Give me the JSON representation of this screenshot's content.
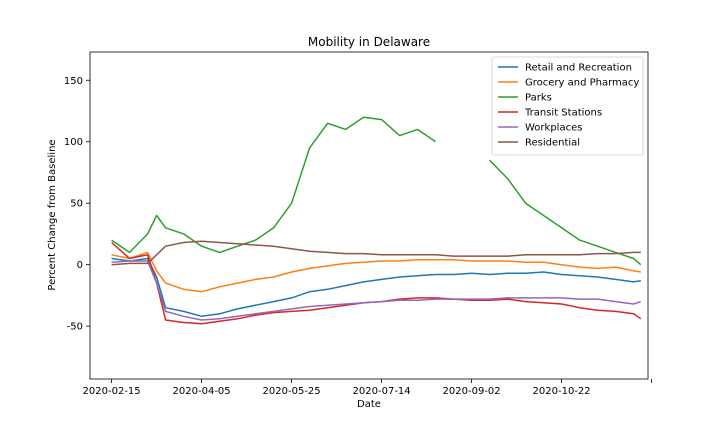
{
  "chart_data": {
    "type": "line",
    "title": "Mobility in Delaware",
    "xlabel": "Date",
    "ylabel": "Percent Change from Baseline",
    "xlim": [
      -12,
      298
    ],
    "ylim": [
      -93,
      173
    ],
    "x_ticks": [
      {
        "day": 0,
        "label": "2020-02-15"
      },
      {
        "day": 50,
        "label": "2020-04-05"
      },
      {
        "day": 100,
        "label": "2020-05-25"
      },
      {
        "day": 150,
        "label": "2020-07-14"
      },
      {
        "day": 200,
        "label": "2020-09-02"
      },
      {
        "day": 250,
        "label": "2020-10-22"
      },
      {
        "day": 300,
        "label": ""
      }
    ],
    "y_ticks": [
      -50,
      0,
      50,
      100,
      150
    ],
    "legend_position": "top-right",
    "series": [
      {
        "name": "Retail and Recreation",
        "color": "#1f77b4",
        "x": [
          0,
          10,
          20,
          25,
          30,
          40,
          50,
          60,
          70,
          80,
          90,
          100,
          110,
          120,
          130,
          140,
          150,
          160,
          170,
          180,
          190,
          200,
          210,
          220,
          230,
          240,
          250,
          260,
          270,
          280,
          290,
          294
        ],
        "y": [
          5,
          3,
          5,
          -10,
          -35,
          -38,
          -42,
          -40,
          -36,
          -33,
          -30,
          -27,
          -22,
          -20,
          -17,
          -14,
          -12,
          -10,
          -9,
          -8,
          -8,
          -7,
          -8,
          -7,
          -7,
          -6,
          -8,
          -9,
          -10,
          -12,
          -14,
          -13
        ]
      },
      {
        "name": "Grocery and Pharmacy",
        "color": "#ff7f0e",
        "x": [
          0,
          10,
          20,
          25,
          30,
          40,
          50,
          60,
          70,
          80,
          90,
          100,
          110,
          120,
          130,
          140,
          150,
          160,
          170,
          180,
          190,
          200,
          210,
          220,
          230,
          240,
          250,
          260,
          270,
          280,
          290,
          294
        ],
        "y": [
          8,
          5,
          10,
          -5,
          -15,
          -20,
          -22,
          -18,
          -15,
          -12,
          -10,
          -6,
          -3,
          -1,
          1,
          2,
          3,
          3,
          4,
          4,
          4,
          3,
          3,
          3,
          2,
          2,
          0,
          -2,
          -3,
          -2,
          -5,
          -6
        ]
      },
      {
        "name": "Parks",
        "color": "#2ca02c",
        "x": [
          0,
          10,
          20,
          25,
          30,
          40,
          50,
          60,
          70,
          80,
          90,
          100,
          110,
          120,
          130,
          140,
          150,
          160,
          170,
          180,
          190,
          200,
          210,
          220,
          230,
          240,
          250,
          260,
          270,
          280,
          290,
          294
        ],
        "y": [
          20,
          10,
          25,
          40,
          30,
          25,
          15,
          10,
          15,
          20,
          30,
          50,
          95,
          115,
          110,
          120,
          118,
          105,
          110,
          100,
          null,
          null,
          85,
          70,
          50,
          40,
          30,
          20,
          15,
          10,
          5,
          0
        ]
      },
      {
        "name": "Transit Stations",
        "color": "#d62728",
        "x": [
          0,
          10,
          20,
          25,
          30,
          40,
          50,
          60,
          70,
          80,
          90,
          100,
          110,
          120,
          130,
          140,
          150,
          160,
          170,
          180,
          190,
          200,
          210,
          220,
          230,
          240,
          250,
          260,
          270,
          280,
          290,
          294
        ],
        "y": [
          18,
          5,
          8,
          -15,
          -45,
          -47,
          -48,
          -46,
          -44,
          -41,
          -39,
          -38,
          -37,
          -35,
          -33,
          -31,
          -30,
          -28,
          -27,
          -27,
          -28,
          -29,
          -29,
          -28,
          -30,
          -31,
          -32,
          -35,
          -37,
          -38,
          -40,
          -44
        ]
      },
      {
        "name": "Workplaces",
        "color": "#9467bd",
        "x": [
          0,
          10,
          20,
          25,
          30,
          40,
          50,
          60,
          70,
          80,
          90,
          100,
          110,
          120,
          130,
          140,
          150,
          160,
          170,
          180,
          190,
          200,
          210,
          220,
          230,
          240,
          250,
          260,
          270,
          280,
          290,
          294
        ],
        "y": [
          2,
          3,
          3,
          -15,
          -38,
          -42,
          -45,
          -44,
          -42,
          -40,
          -38,
          -36,
          -34,
          -33,
          -32,
          -31,
          -30,
          -29,
          -29,
          -28,
          -28,
          -28,
          -28,
          -27,
          -27,
          -27,
          -27,
          -28,
          -28,
          -30,
          -32,
          -30
        ]
      },
      {
        "name": "Residential",
        "color": "#8c564b",
        "x": [
          0,
          10,
          20,
          25,
          30,
          40,
          50,
          60,
          70,
          80,
          90,
          100,
          110,
          120,
          130,
          140,
          150,
          160,
          170,
          180,
          190,
          200,
          210,
          220,
          230,
          240,
          250,
          260,
          270,
          280,
          290,
          294
        ],
        "y": [
          0,
          1,
          1,
          8,
          15,
          18,
          19,
          18,
          17,
          16,
          15,
          13,
          11,
          10,
          9,
          9,
          8,
          8,
          8,
          8,
          7,
          7,
          7,
          7,
          8,
          8,
          8,
          8,
          9,
          9,
          10,
          10
        ]
      }
    ]
  }
}
